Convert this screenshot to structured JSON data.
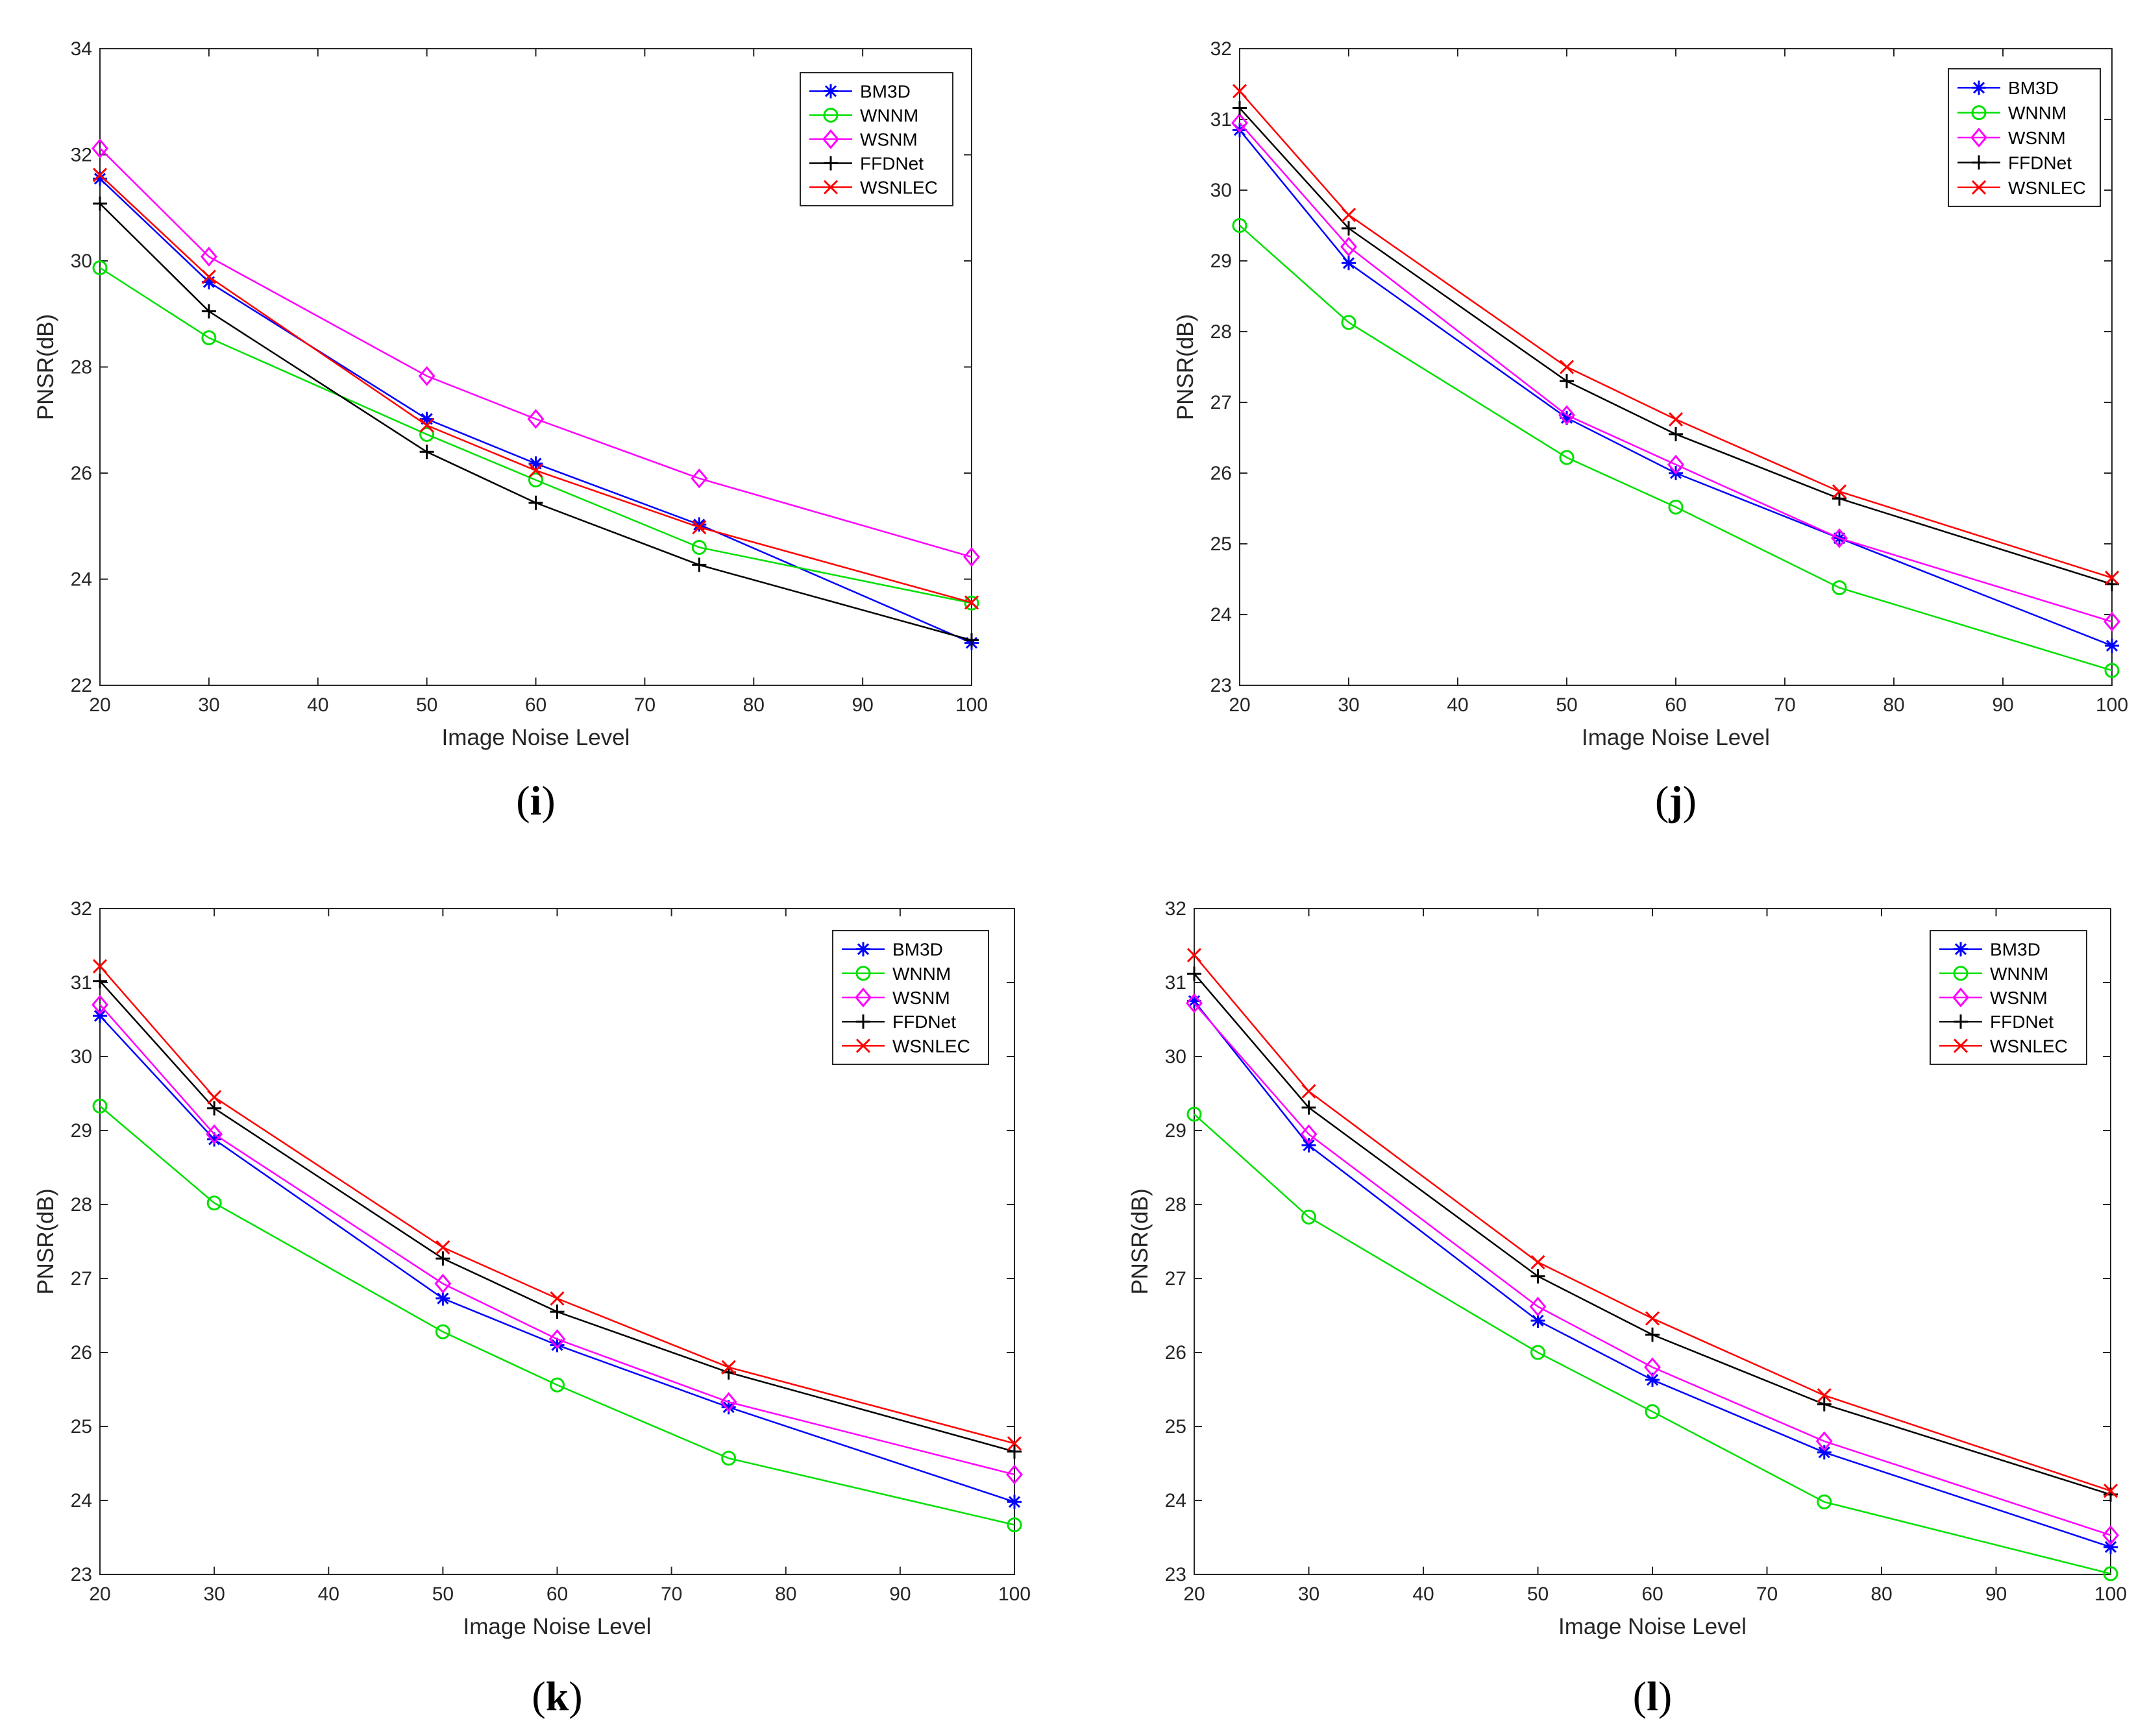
{
  "colors": {
    "BM3D": "#0000ff",
    "WNNM": "#00e000",
    "WSNM": "#ff00ff",
    "FFDNet": "#000000",
    "WSNLEC": "#ff0000"
  },
  "chart_data": [
    {
      "type": "line",
      "caption": "i",
      "xlabel": "Image Noise Level",
      "ylabel": "PNSR(dB)",
      "xlim": [
        20,
        100
      ],
      "ylim": [
        22,
        34
      ],
      "xticks": [
        20,
        30,
        40,
        50,
        60,
        70,
        80,
        90,
        100
      ],
      "yticks": [
        22,
        24,
        26,
        28,
        30,
        32,
        34
      ],
      "x": [
        20,
        30,
        50,
        60,
        75,
        100
      ],
      "legend_position": "top-right",
      "series": [
        {
          "name": "BM3D",
          "marker": "asterisk",
          "values": [
            31.55,
            29.6,
            27.02,
            26.18,
            25.03,
            22.8
          ]
        },
        {
          "name": "WNNM",
          "marker": "circle",
          "values": [
            29.87,
            28.55,
            26.73,
            25.87,
            24.6,
            23.55
          ]
        },
        {
          "name": "WSNM",
          "marker": "diamond",
          "values": [
            32.12,
            30.08,
            27.83,
            27.02,
            25.9,
            24.42
          ]
        },
        {
          "name": "FFDNet",
          "marker": "plus",
          "values": [
            31.08,
            29.05,
            26.4,
            25.44,
            24.27,
            22.85
          ]
        },
        {
          "name": "WSNLEC",
          "marker": "cross",
          "values": [
            31.62,
            29.7,
            26.9,
            26.05,
            24.98,
            23.56
          ]
        }
      ]
    },
    {
      "type": "line",
      "caption": "j",
      "xlabel": "Image Noise Level",
      "ylabel": "PNSR(dB)",
      "xlim": [
        20,
        100
      ],
      "ylim": [
        23,
        32
      ],
      "xticks": [
        20,
        30,
        40,
        50,
        60,
        70,
        80,
        90,
        100
      ],
      "yticks": [
        23,
        24,
        25,
        26,
        27,
        28,
        29,
        30,
        31,
        32
      ],
      "x": [
        20,
        30,
        50,
        60,
        75,
        100
      ],
      "legend_position": "top-right",
      "series": [
        {
          "name": "BM3D",
          "marker": "asterisk",
          "values": [
            30.85,
            28.97,
            26.78,
            26.0,
            25.08,
            23.56
          ]
        },
        {
          "name": "WNNM",
          "marker": "circle",
          "values": [
            29.5,
            28.13,
            26.22,
            25.52,
            24.38,
            23.21
          ]
        },
        {
          "name": "WSNM",
          "marker": "diamond",
          "values": [
            30.95,
            29.2,
            26.82,
            26.12,
            25.08,
            23.9
          ]
        },
        {
          "name": "FFDNet",
          "marker": "plus",
          "values": [
            31.16,
            29.46,
            27.3,
            26.55,
            25.64,
            24.43
          ]
        },
        {
          "name": "WSNLEC",
          "marker": "cross",
          "values": [
            31.4,
            29.65,
            27.5,
            26.76,
            25.74,
            24.52
          ]
        }
      ]
    },
    {
      "type": "line",
      "caption": "k",
      "xlabel": "Image Noise Level",
      "ylabel": "PNSR(dB)",
      "xlim": [
        20,
        100
      ],
      "ylim": [
        23,
        32
      ],
      "xticks": [
        20,
        30,
        40,
        50,
        60,
        70,
        80,
        90,
        100
      ],
      "yticks": [
        23,
        24,
        25,
        26,
        27,
        28,
        29,
        30,
        31,
        32
      ],
      "x": [
        20,
        30,
        50,
        60,
        75,
        100
      ],
      "legend_position": "top-right",
      "series": [
        {
          "name": "BM3D",
          "marker": "asterisk",
          "values": [
            30.55,
            28.88,
            26.73,
            26.1,
            25.26,
            23.98
          ]
        },
        {
          "name": "WNNM",
          "marker": "circle",
          "values": [
            29.33,
            28.02,
            26.28,
            25.56,
            24.57,
            23.67
          ]
        },
        {
          "name": "WSNM",
          "marker": "diamond",
          "values": [
            30.7,
            28.95,
            26.93,
            26.18,
            25.33,
            24.35
          ]
        },
        {
          "name": "FFDNet",
          "marker": "plus",
          "values": [
            31.02,
            29.3,
            27.27,
            26.55,
            25.73,
            24.66
          ]
        },
        {
          "name": "WSNLEC",
          "marker": "cross",
          "values": [
            31.22,
            29.45,
            27.42,
            26.73,
            25.8,
            24.77
          ]
        }
      ]
    },
    {
      "type": "line",
      "caption": "l",
      "xlabel": "Image Noise Level",
      "ylabel": "PNSR(dB)",
      "xlim": [
        20,
        100
      ],
      "ylim": [
        23,
        32
      ],
      "xticks": [
        20,
        30,
        40,
        50,
        60,
        70,
        80,
        90,
        100
      ],
      "yticks": [
        23,
        24,
        25,
        26,
        27,
        28,
        29,
        30,
        31,
        32
      ],
      "x": [
        20,
        30,
        50,
        60,
        75,
        100
      ],
      "legend_position": "top-right",
      "series": [
        {
          "name": "BM3D",
          "marker": "asterisk",
          "values": [
            30.75,
            28.8,
            26.43,
            25.63,
            24.65,
            23.37
          ]
        },
        {
          "name": "WNNM",
          "marker": "circle",
          "values": [
            29.22,
            27.83,
            26.0,
            25.2,
            23.98,
            23.01
          ]
        },
        {
          "name": "WSNM",
          "marker": "diamond",
          "values": [
            30.72,
            28.95,
            26.62,
            25.8,
            24.8,
            23.53
          ]
        },
        {
          "name": "FFDNet",
          "marker": "plus",
          "values": [
            31.12,
            29.31,
            27.03,
            26.24,
            25.3,
            24.08
          ]
        },
        {
          "name": "WSNLEC",
          "marker": "cross",
          "values": [
            31.37,
            29.53,
            27.22,
            26.46,
            25.42,
            24.13
          ]
        }
      ]
    }
  ]
}
